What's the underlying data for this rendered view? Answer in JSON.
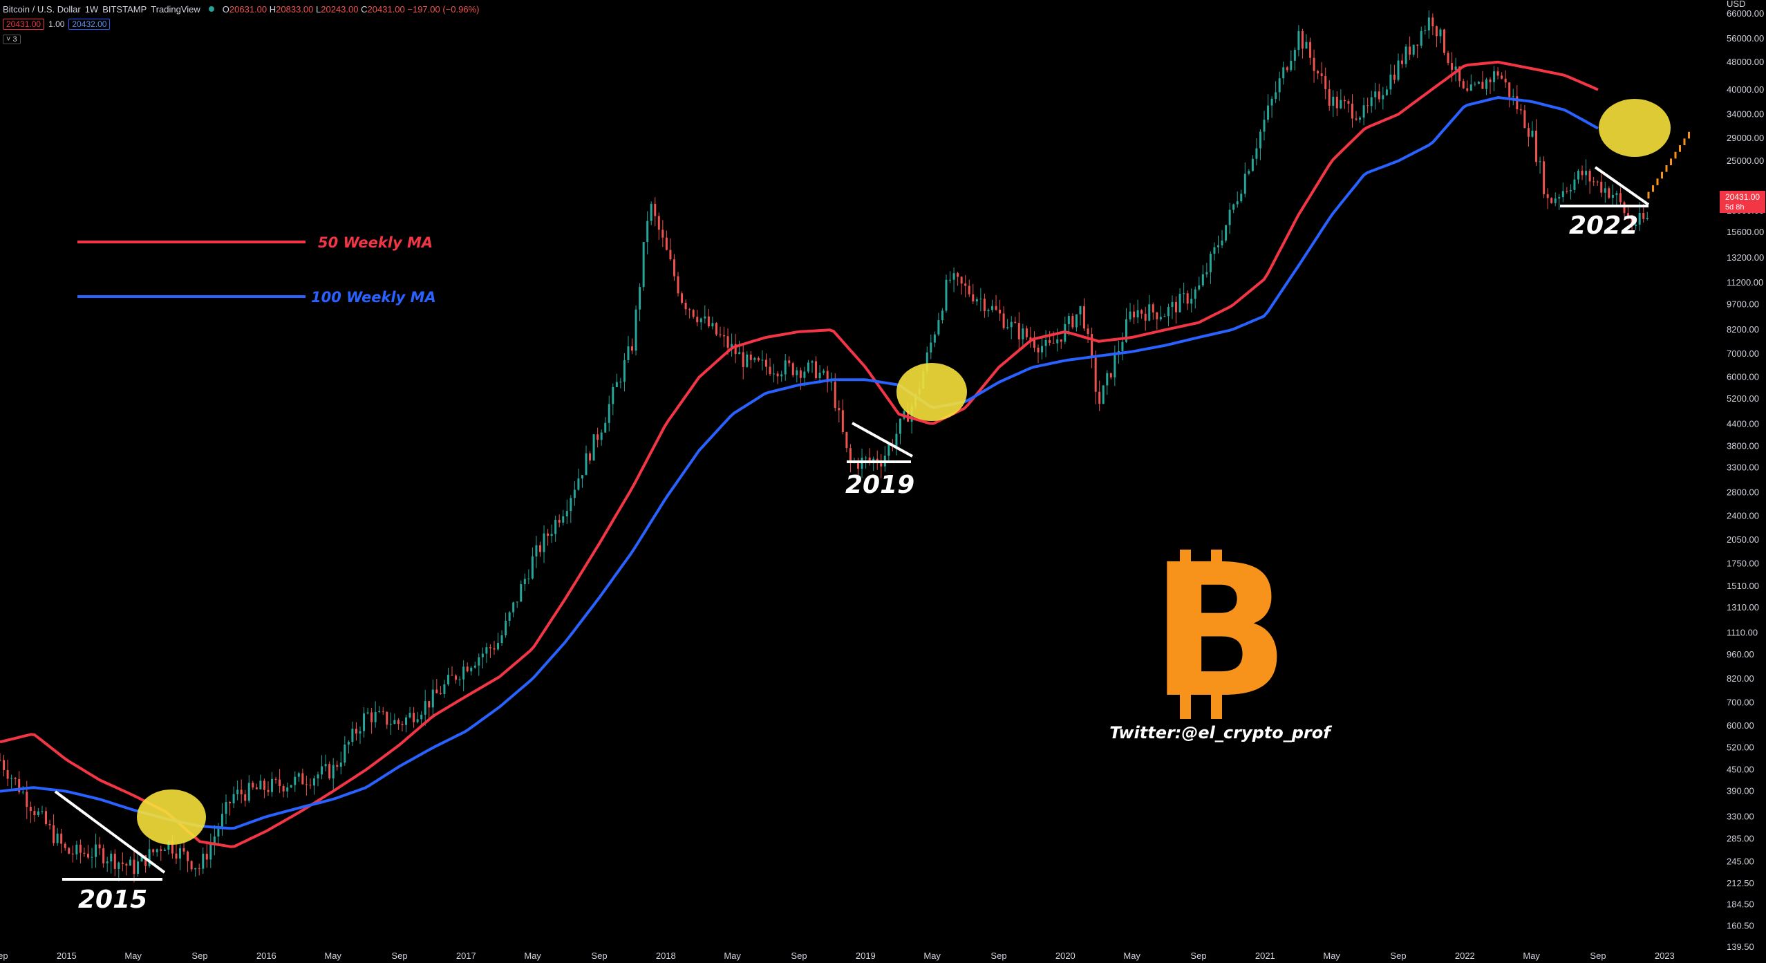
{
  "header": {
    "symbol": "Bitcoin / U.S. Dollar",
    "interval": "1W",
    "exchange": "BITSTAMP",
    "source": "TradingView",
    "open_label": "O",
    "open": "20631.00",
    "high_label": "H",
    "high": "20833.00",
    "low_label": "L",
    "low": "20243.00",
    "close_label": "C",
    "close": "20431.00",
    "change": "−197.00 (−0.96%)",
    "bid": "20431.00",
    "spread": "1.00",
    "ask": "20432.00",
    "collapse_label": "˅ 3"
  },
  "price_axis": {
    "currency": "USD",
    "ticks": [
      "66000.00",
      "56000.00",
      "48000.00",
      "40000.00",
      "34000.00",
      "29000.00",
      "25000.00",
      "18000.00",
      "15600.00",
      "13200.00",
      "11200.00",
      "9700.00",
      "8200.00",
      "7000.00",
      "6000.00",
      "5200.00",
      "4400.00",
      "3800.00",
      "3300.00",
      "2800.00",
      "2400.00",
      "2050.00",
      "1750.00",
      "1510.00",
      "1310.00",
      "1110.00",
      "960.00",
      "820.00",
      "700.00",
      "600.00",
      "520.00",
      "450.00",
      "390.00",
      "330.00",
      "285.00",
      "245.00",
      "212.50",
      "184.50",
      "160.50",
      "139.50"
    ],
    "last_price": "20431.00",
    "countdown": "5d 8h"
  },
  "time_axis": {
    "ticks": [
      "Sep",
      "2015",
      "May",
      "Sep",
      "2016",
      "May",
      "Sep",
      "2017",
      "May",
      "Sep",
      "2018",
      "May",
      "Sep",
      "2019",
      "May",
      "Sep",
      "2020",
      "May",
      "Sep",
      "2021",
      "May",
      "Sep",
      "2022",
      "May",
      "Sep",
      "2023"
    ]
  },
  "legend": {
    "ma50_label": "50 Weekly MA",
    "ma100_label": "100 Weekly MA"
  },
  "annotations": {
    "year_2015": "2015",
    "year_2019": "2019",
    "year_2022": "2022",
    "twitter": "Twitter:@el_crypto_prof"
  },
  "colors": {
    "background": "#000000",
    "ma50": "#f23645",
    "ma100": "#2962ff",
    "highlight": "#f5e03b",
    "bitcoin": "#f7931a",
    "up_candle": "#26a69a",
    "down_candle": "#ef5350",
    "projection": "#f7931a"
  },
  "chart_data": {
    "type": "line",
    "title": "Bitcoin / U.S. Dollar",
    "scale": "log",
    "ylim": [
      139.5,
      66000
    ],
    "x_range": [
      "2014-09",
      "2023-01"
    ],
    "series": [
      {
        "name": "Bitcoin / U.S. Dollar",
        "kind": "price",
        "x": [
          "2014-09",
          "2014-11",
          "2015-01",
          "2015-03",
          "2015-05",
          "2015-07",
          "2015-09",
          "2015-11",
          "2016-01",
          "2016-03",
          "2016-05",
          "2016-07",
          "2016-09",
          "2016-11",
          "2017-01",
          "2017-03",
          "2017-05",
          "2017-07",
          "2017-09",
          "2017-11",
          "2017-12",
          "2018-02",
          "2018-04",
          "2018-06",
          "2018-08",
          "2018-10",
          "2018-11",
          "2018-12",
          "2019-02",
          "2019-04",
          "2019-06",
          "2019-08",
          "2019-10",
          "2019-12",
          "2020-02",
          "2020-03",
          "2020-05",
          "2020-07",
          "2020-09",
          "2020-11",
          "2021-01",
          "2021-03",
          "2021-05",
          "2021-07",
          "2021-09",
          "2021-11",
          "2022-01",
          "2022-03",
          "2022-05",
          "2022-06",
          "2022-08",
          "2022-10",
          "2022-11",
          "2022-12"
        ],
        "y": [
          480,
          350,
          260,
          260,
          235,
          280,
          235,
          380,
          400,
          420,
          450,
          650,
          610,
          720,
          900,
          1050,
          1800,
          2600,
          4200,
          7500,
          19000,
          10000,
          8000,
          6500,
          6400,
          6300,
          5600,
          3400,
          3500,
          5200,
          11500,
          10000,
          8200,
          7200,
          9500,
          5000,
          9300,
          9200,
          10700,
          18000,
          33000,
          58000,
          37000,
          34000,
          47000,
          65000,
          38000,
          45000,
          30000,
          19000,
          23000,
          20000,
          16500,
          17000
        ]
      },
      {
        "name": "50 Weekly MA",
        "kind": "ma",
        "x": [
          "2014-09",
          "2014-11",
          "2015-01",
          "2015-03",
          "2015-05",
          "2015-07",
          "2015-09",
          "2015-11",
          "2016-01",
          "2016-03",
          "2016-05",
          "2016-07",
          "2016-09",
          "2016-11",
          "2017-01",
          "2017-03",
          "2017-05",
          "2017-07",
          "2017-09",
          "2017-11",
          "2018-01",
          "2018-03",
          "2018-05",
          "2018-07",
          "2018-09",
          "2018-11",
          "2019-01",
          "2019-03",
          "2019-05",
          "2019-07",
          "2019-09",
          "2019-11",
          "2020-01",
          "2020-03",
          "2020-05",
          "2020-07",
          "2020-09",
          "2020-11",
          "2021-01",
          "2021-03",
          "2021-05",
          "2021-07",
          "2021-09",
          "2021-11",
          "2022-01",
          "2022-03",
          "2022-05",
          "2022-07",
          "2022-09"
        ],
        "y": [
          540,
          570,
          480,
          420,
          380,
          340,
          280,
          270,
          300,
          340,
          390,
          450,
          530,
          640,
          730,
          830,
          1000,
          1400,
          2000,
          2900,
          4400,
          6000,
          7300,
          7800,
          8100,
          8200,
          6400,
          4700,
          4400,
          4900,
          6400,
          7700,
          8100,
          7600,
          7800,
          8200,
          8600,
          9600,
          11500,
          17500,
          25000,
          31000,
          34000,
          40000,
          47000,
          48000,
          46000,
          44000,
          40000
        ]
      },
      {
        "name": "100 Weekly MA",
        "kind": "ma",
        "x": [
          "2014-09",
          "2014-11",
          "2015-01",
          "2015-03",
          "2015-05",
          "2015-07",
          "2015-09",
          "2015-11",
          "2016-01",
          "2016-03",
          "2016-05",
          "2016-07",
          "2016-09",
          "2016-11",
          "2017-01",
          "2017-03",
          "2017-05",
          "2017-07",
          "2017-09",
          "2017-11",
          "2018-01",
          "2018-03",
          "2018-05",
          "2018-07",
          "2018-09",
          "2018-11",
          "2019-01",
          "2019-03",
          "2019-05",
          "2019-07",
          "2019-09",
          "2019-11",
          "2020-01",
          "2020-03",
          "2020-05",
          "2020-07",
          "2020-09",
          "2020-11",
          "2021-01",
          "2021-03",
          "2021-05",
          "2021-07",
          "2021-09",
          "2021-11",
          "2022-01",
          "2022-03",
          "2022-05",
          "2022-07",
          "2022-09"
        ],
        "y": [
          390,
          400,
          390,
          370,
          345,
          325,
          310,
          305,
          330,
          350,
          370,
          400,
          460,
          520,
          580,
          680,
          820,
          1050,
          1400,
          1900,
          2700,
          3700,
          4700,
          5400,
          5700,
          5900,
          5900,
          5700,
          4900,
          5100,
          5800,
          6400,
          6700,
          6900,
          7100,
          7400,
          7800,
          8200,
          9000,
          12500,
          17500,
          23000,
          25000,
          28000,
          36000,
          38000,
          37000,
          35000,
          31000
        ]
      }
    ]
  }
}
